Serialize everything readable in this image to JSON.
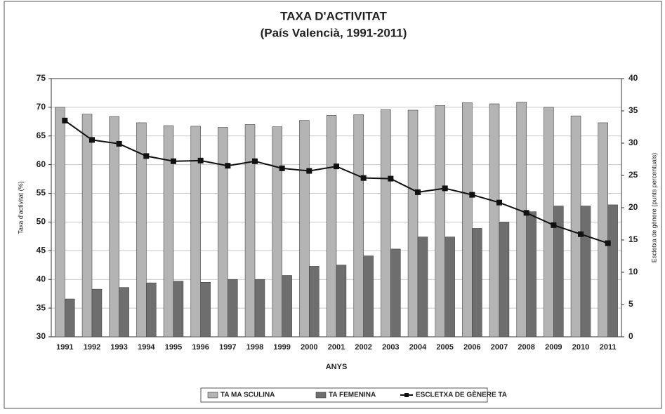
{
  "chart_data": {
    "type": "bar",
    "title": "TAXA D'ACTIVITAT",
    "subtitle": "(País Valencià, 1991-2011)",
    "x_label": "ANYS",
    "y_label": "Taxa d'activitat (%)",
    "y2_label": "Escletxa de gènere (punts percentuals)",
    "categories": [
      "1991",
      "1992",
      "1993",
      "1994",
      "1995",
      "1996",
      "1997",
      "1998",
      "1999",
      "2000",
      "2001",
      "2002",
      "2003",
      "2004",
      "2005",
      "2006",
      "2007",
      "2008",
      "2009",
      "2010",
      "2011"
    ],
    "series": [
      {
        "name": "TA MA SCULINA",
        "type": "bar",
        "color": "#b4b4b4",
        "values": [
          70.0,
          68.8,
          68.4,
          67.3,
          66.8,
          66.7,
          66.5,
          67.0,
          66.6,
          67.7,
          68.6,
          68.7,
          69.6,
          69.5,
          70.3,
          70.8,
          70.6,
          70.9,
          70.0,
          68.5,
          67.3
        ]
      },
      {
        "name": "TA FEMENINA",
        "type": "bar",
        "color": "#6e6e6e",
        "values": [
          36.6,
          38.3,
          38.6,
          39.4,
          39.7,
          39.5,
          40.0,
          40.0,
          40.7,
          42.3,
          42.5,
          44.1,
          45.3,
          47.4,
          47.4,
          48.9,
          50.0,
          51.8,
          52.8,
          52.8,
          53.0
        ]
      },
      {
        "name": "ESCLETXA DE GÈNERE TA",
        "type": "line",
        "axis": "y2",
        "color": "#111111",
        "values": [
          33.5,
          30.5,
          29.9,
          28.0,
          27.2,
          27.3,
          26.5,
          27.2,
          26.1,
          25.7,
          26.4,
          24.6,
          24.5,
          22.4,
          23.0,
          22.0,
          20.8,
          19.2,
          17.3,
          15.9,
          14.5
        ]
      }
    ],
    "ylim": [
      30,
      75
    ],
    "yticks": [
      30,
      35,
      40,
      45,
      50,
      55,
      60,
      65,
      70,
      75
    ],
    "y2lim": [
      0,
      40
    ],
    "y2ticks": [
      0,
      5,
      10,
      15,
      20,
      25,
      30,
      35,
      40
    ],
    "grid": true,
    "legend": "bottom"
  }
}
